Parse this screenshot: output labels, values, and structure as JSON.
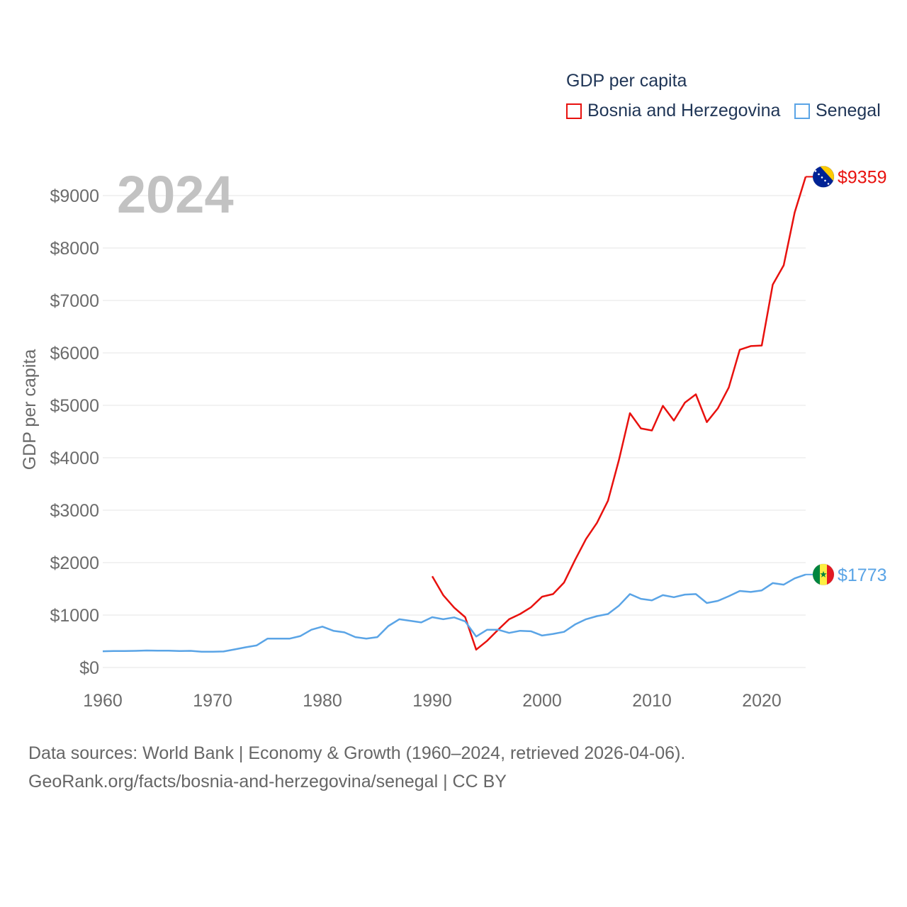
{
  "legend": {
    "title": "GDP per capita",
    "items": [
      {
        "label": "Bosnia and Herzegovina",
        "color": "#e8110e"
      },
      {
        "label": "Senegal",
        "color": "#5aa4e6"
      }
    ]
  },
  "year_label": "2024",
  "footer": {
    "line1": "Data sources: World Bank | Economy & Growth (1960–2024, retrieved 2026-04-06).",
    "line2": "GeoRank.org/facts/bosnia-and-herzegovina/senegal | CC BY"
  },
  "chart_data": {
    "type": "line",
    "title": "GDP per capita",
    "xlabel": "",
    "ylabel": "GDP per capita",
    "xlim": [
      1960,
      2024
    ],
    "ylim": [
      0,
      9500
    ],
    "x_ticks": [
      1960,
      1970,
      1980,
      1990,
      2000,
      2010,
      2020
    ],
    "x_tick_labels": [
      "1960",
      "1970",
      "1980",
      "1990",
      "2000",
      "2010",
      "2020"
    ],
    "y_ticks": [
      0,
      1000,
      2000,
      3000,
      4000,
      5000,
      6000,
      7000,
      8000,
      9000
    ],
    "y_tick_labels": [
      "$0",
      "$1000",
      "$2000",
      "$3000",
      "$4000",
      "$5000",
      "$6000",
      "$7000",
      "$8000",
      "$9000"
    ],
    "grid": true,
    "legend_position": "top-right",
    "series": [
      {
        "name": "Bosnia and Herzegovina",
        "color": "#e8110e",
        "end_label": "$9359",
        "flag": "bosnia-flag",
        "x": [
          1990,
          1991,
          1992,
          1993,
          1994,
          1995,
          1996,
          1997,
          1998,
          1999,
          2000,
          2001,
          2002,
          2003,
          2004,
          2005,
          2006,
          2007,
          2008,
          2009,
          2010,
          2011,
          2012,
          2013,
          2014,
          2015,
          2016,
          2017,
          2018,
          2019,
          2020,
          2021,
          2022,
          2023,
          2024
        ],
        "values": [
          1740,
          1380,
          1140,
          960,
          340,
          510,
          720,
          920,
          1020,
          1150,
          1350,
          1400,
          1620,
          2050,
          2450,
          2760,
          3180,
          3960,
          4850,
          4560,
          4520,
          4990,
          4710,
          5050,
          5210,
          4680,
          4940,
          5340,
          6060,
          6130,
          6140,
          7300,
          7670,
          8680,
          9359
        ]
      },
      {
        "name": "Senegal",
        "color": "#5aa4e6",
        "end_label": "$1773",
        "flag": "senegal-flag",
        "x": [
          1960,
          1961,
          1962,
          1963,
          1964,
          1965,
          1966,
          1967,
          1968,
          1969,
          1970,
          1971,
          1972,
          1973,
          1974,
          1975,
          1976,
          1977,
          1978,
          1979,
          1980,
          1981,
          1982,
          1983,
          1984,
          1985,
          1986,
          1987,
          1988,
          1989,
          1990,
          1991,
          1992,
          1993,
          1994,
          1995,
          1996,
          1997,
          1998,
          1999,
          2000,
          2001,
          2002,
          2003,
          2004,
          2005,
          2006,
          2007,
          2008,
          2009,
          2010,
          2011,
          2012,
          2013,
          2014,
          2015,
          2016,
          2017,
          2018,
          2019,
          2020,
          2021,
          2022,
          2023,
          2024
        ],
        "values": [
          310,
          315,
          315,
          318,
          325,
          320,
          320,
          315,
          318,
          300,
          300,
          305,
          345,
          385,
          420,
          550,
          550,
          550,
          600,
          720,
          780,
          700,
          670,
          580,
          550,
          580,
          790,
          920,
          890,
          860,
          960,
          920,
          955,
          880,
          590,
          720,
          720,
          660,
          700,
          690,
          610,
          640,
          680,
          820,
          920,
          980,
          1020,
          1180,
          1400,
          1310,
          1280,
          1380,
          1340,
          1390,
          1400,
          1230,
          1270,
          1360,
          1460,
          1440,
          1470,
          1610,
          1580,
          1700,
          1773
        ]
      }
    ]
  }
}
